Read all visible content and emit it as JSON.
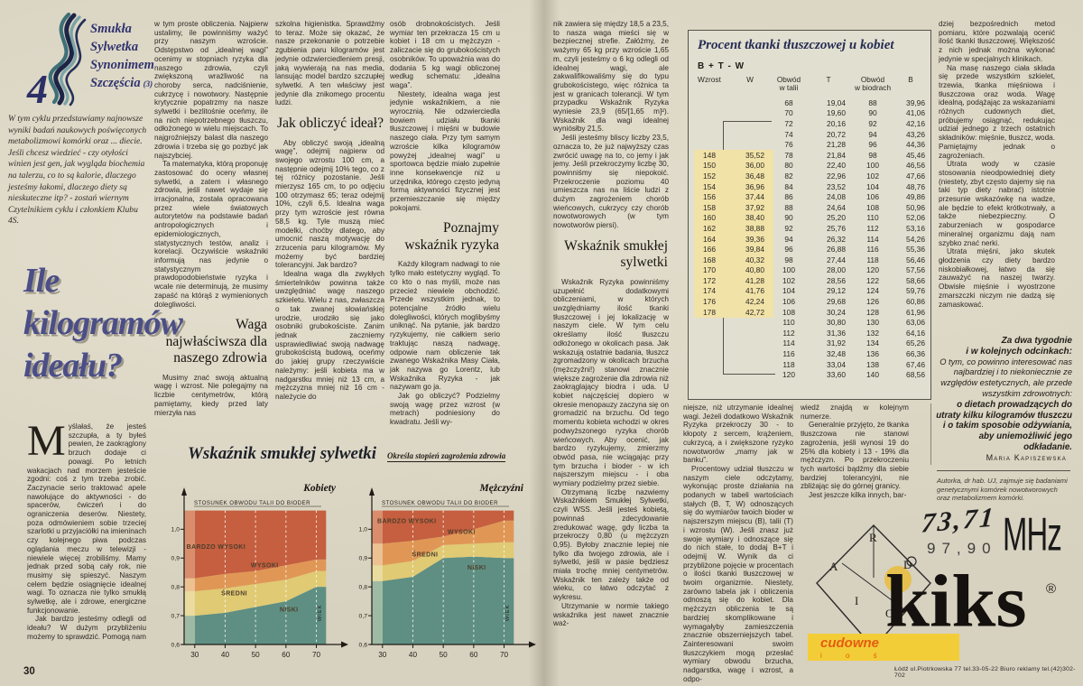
{
  "masthead": {
    "number": "4",
    "lines": [
      "Smukła",
      "Sylwetka",
      "Synonimem",
      "Szczęścia"
    ],
    "issue": "(3)"
  },
  "intro": "W tym cyklu przedstawiamy najnowsze wyniki badań naukowych poświęconych metabolizmowi komórki oraz ... diecie. Jeśli chcesz wiedzieć - czy otyłości winien jest gen, jak wygląda biochemia na talerzu, co to są kalorie, dlaczego jesteśmy łakomi, dlaczego diety są nieskuteczne itp? - zostań wiernym Czytelnikiem cyklu i członkiem Klubu 4S.",
  "headline": "Ile kilogramów ideału?",
  "page_number": "30",
  "columns": {
    "c1": {
      "dropcap": "M",
      "p1": "yślałaś, że jesteś szczupła, a ty byłeś pewien, że zaokrąglony brzuch dodaje ci powagi. Po letnich wakacjach nad morzem jesteście zgodni: coś z tym trzeba zrobić. Zaczynacie serio traktować apele nawołujące do aktywności - do spacerów, ćwiczeń i do ograniczenia deserów. Niestety, poza odmówieniem sobie trzeciej szarlotki u przyjaciółki na imieninach czy kolejnego piwa podczas oglądania meczu w telewizji - niewiele więcej zrobiliśmy. Mamy jednak przed sobą cały rok, nie musimy się spieszyć. Naszym celem będzie osiągnięcie idealnej wagi. To oznacza nie tylko smukłą sylwetkę, ale i zdrowe, energiczne funkcjonowanie.",
      "p2": "Jak bardzo jesteśmy odlegli od ideału? W dużym przybliżeniu możemy to sprawdzić. Pomogą nam"
    },
    "c2": {
      "p1": "w tym proste obliczenia. Najpierw ustalimy, ile powinniśmy ważyć przy naszym wzroście. Odstępstwo od „idealnej wagi” ocenimy w stopniach ryzyka dla naszego zdrowia, czyli zwiększoną wrażliwość na choroby serca, nadciśnienie, cukrzycę i nowotwory. Następnie krytycznie popatrzmy na nasze sylwetki i bezlitośnie oceńmy, ile na nich niepotrzebnego tłuszczu, odłożonego w wielu miejscach. To najgroźniejszy balast dla naszego zdrowia i trzeba się go pozbyć jak najszybciej.",
      "p2": "Ta matematyka, którą proponuję zastosować do oceny własnej sylwetki, a zatem i własnego zdrowia, jeśli nawet wydaje się irracjonalna, została opracowana przez wiele światowych autorytetów na podstawie badań antropologicznych i epidemiologicznych, statystycznych testów, analiz i korelacji. Oczywiście wskaźniki informują nas jedynie o statystycznym prawdopodobieństwie ryzyka i wcale nie determinują, że musimy zapaść na którąś z wymienionych dolegliwości.",
      "header": "Waga najwłaściwsza dla naszego zdrowia",
      "p3": "Musimy znać swoją aktualną wagę i wzrost. Nie polegajmy na liczbie centymetrów, którą pamiętamy, kiedy przed laty mierzyła nas"
    },
    "c3": {
      "p1": "szkolna higienistka. Sprawdźmy to teraz. Może się okazać, że nasze przekonanie o potrzebie zgubienia paru kilogramów jest jedynie odzwierciedleniem presji, jaką wywierają na nas media, lansując model bardzo szczupłej sylwetki. A ten właściwy jest jedynie dla znikomego procentu ludzi.",
      "header": "Jak obliczyć ideał?",
      "p2": "Aby obliczyć swoją „idealną wagę”, odejmij najpierw od swojego wzrostu 100 cm, a następnie odejmij 10% tego, co z tej różnicy pozostanie. Jeśli mierzysz 165 cm, to po odjęciu 100 otrzymasz 65; teraz odejmij 10%, czyli 6,5. Idealna waga przy tym wzroście jest równa 58,5 kg. Tyle muszą mieć modelki, choćby dlatego, aby umocnić naszą motywację do zrzucenia paru kilogramów. My możemy być bardziej tolerancyjni. Jak bardzo?",
      "p3": "Idealna waga dla zwykłych śmiertelników powinna także uwzględniać wagę naszego szkieletu. Wielu z nas, zwłaszcza o tak zwanej słowiańskiej urodzie, urodziło się jako osobniki grubokościste. Zanim jednak zaczniemy usprawiedliwiać swoją nadwagę grubokościstą budową, oceńmy do jakiej grupy rzeczywiście należymy: jeśli kobieta ma w nadgarstku mniej niż 13 cm, a mężczyzna mniej niż 16 cm - należycie do"
    },
    "c4": {
      "p1": "osób drobnokościstych. Jeśli wymiar ten przekracza 15 cm u kobiet i 18 cm u mężczyzn - zaliczacie się do grubokościstych osobników. To upoważnia was do dodania 5 kg wagi obliczonej według schematu: „idealna waga”.",
      "p2": "Niestety, idealna waga jest jedynie wskaźnikiem, a nie wyrocznią. Nie odzwierciedla bowiem udziału tkanki tłuszczowej i mięśni w budowie naszego ciała. Przy tym samym wzroście kilka kilogramów powyżej „idealnej wagi” u sportowca będzie miało zupełnie inne konsekwencje niż u urzędnika, którego często jedyną formą aktywności fizycznej jest przemieszczanie się między pokojami.",
      "header": "Poznajmy wskaźnik ryzyka",
      "p3": "Każdy kilogram nadwagi to nie tylko mało estetyczny wygląd. To co kto o nas myśli, może nas przecież niewiele obchodzić. Przede wszystkim jednak, to potencjalne źródło wielu dolegliwości, których moglibyśmy uniknąć. Na pytanie, jak bardzo ryzykujemy, nie całkiem serio traktując naszą nadwagę, odpowie nam obliczenie tak zwanego Wskaźnika Masy Ciała, jak nazywa go Lorentz, lub Wskaźnika Ryzyka - jak nazywam go ja.",
      "p4": "Jak go obliczyć? Podzielmy swoją wagę przez wzrost (w metrach) podniesiony do kwadratu. Jeśli wy-"
    },
    "c5": {
      "p1": "nik zawiera się między 18,5 a 23,5, to nasza waga mieści się w bezpiecznej strefie. Załóżmy, że ważymy 65 kg przy wzroście 1,65 m, czyli jesteśmy o 6 kg odlegli od idealnej wagi, ale zakwalifikowaliśmy się do typu grubokościstego, więc różnica ta jest w granicach tolerancji. W tym przypadku Wskaźnik Ryzyka wyniesie 23,9 (65/[1,65 m]²). Wskaźnik dla wagi idealnej wyniósłby 21,5.",
      "p2": "Jeśli jesteśmy bliscy liczby 23,5, oznacza to, że już najwyższy czas zwrócić uwagę na to, co jemy i jak jemy. Jeśli przekroczymy liczbę 30, powinniśmy się niepokoić. Przekroczenie poziomu 40 umieszcza nas na liście ludzi z dużym zagrożeniem chorób wieńcowych, cukrzycy czy chorób nowotworowych (w tym nowotworów piersi).",
      "header": "Wskaźnik smukłej sylwetki",
      "p3": "Wskaźnik Ryzyka powinniśmy uzupełnić dodatkowymi obliczeniami, w których uwzględniamy ilość tkanki tłuszczowej i jej lokalizację w naszym ciele. W tym celu określamy ilość tłuszczu odłożonego w okolicach pasa. Jak wskazują ostatnie badania, tłuszcz zgromadzony w okolicach brzucha (mężczyźni!) stanowi znacznie większe zagrożenie dla zdrowia niż zaokrąglający biodra i uda. U kobiet najczęściej dopiero w okresie menopauzy zaczyna się on gromadzić na brzuchu. Od tego momentu kobieta wchodzi w okres podwyższonego ryzyka chorób wieńcowych. Aby ocenić, jak bardzo ryzykujemy, zmierzmy obwód pasa, nie wciągając przy tym brzucha i bioder - w ich najszerszym miejscu - i oba wymiary podzielmy przez siebie.",
      "p4": "Otrzymaną liczbę nazwiemy Wskaźnikiem Smukłej Sylwetki, czyli WSS. Jeśli jesteś kobietą, powinnaś zdecydowanie zredukować wagę, gdy liczba ta przekroczy 0,80 (u mężczyzn 0,95). Byłoby znacznie lepiej nie tylko dla twojego zdrowia, ale i sylwetki, jeśli w pasie będziesz miała trochę mniej centymetrów. Wskaźnik ten zależy także od wieku, co łatwo odczytać z wykresu.",
      "p5": "Utrzymanie w normie takiego wskaźnika jest nawet znacznie waż-"
    },
    "c6": {
      "p1": "niejsze, niż utrzymanie idealnej wagi. Jeżeli dodatkowo Wskaźnik Ryzyka przekroczy 30 - to kłopoty z sercem, krążeniem, cukrzycą, a i zwiększone ryzyko nowotworów „mamy jak w banku”.",
      "p2": "Procentowy udział tłuszczu w naszym ciele odczytamy, wykonując proste działania na podanych w tabeli wartościach stałych (B, T, W) odnoszących się do wymiarów twoich bioder w najszerszym miejscu (B), talii (T) i wzrostu (W). Jeśli znasz już swoje wymiary i odnoszące się do nich stałe, to dodaj B+T i odejmij W. Wynik da ci przybliżone pojęcie w procentach o ilości tkanki tłuszczowej w twoim organizmie. Niestety, zarówno tabela jak i obliczenia odnoszą się do kobiet. Dla mężczyzn obliczenia te są bardziej skomplikowane i wymagałyby zamieszczenia znacznie obszerniejszych tabel. Zainteresowani swoim tłuszczykiem mogą przesłać wymiary obwodu brzucha, nadgarstka, wagę i wzrost, a odpo-"
    },
    "c7": {
      "p1": "wiedź znajdą w kolejnym numerze.",
      "p2": "Generalnie przyjęto, że tkanka tłuszczowa nie stanowi zagrożenia, jeśli wynosi 19 do 25% dla kobiety i 13 - 19% dla mężczyzn. Po przekroczeniu tych wartości bądźmy dla siebie bardziej tolerancyjni, nie zbliżając się do górnej granicy.",
      "p3": "Jest jeszcze kilka innych, bar-"
    },
    "c8": {
      "p1": "dziej bezpośrednich metod pomiaru, które pozwalają ocenić ilość tkanki tłuszczowej. Większość z nich jednak można wykonać jedynie w specjalnych klinikach.",
      "p2": "Na masę naszego ciała składa się przede wszystkim szkielet, trzewia, tkanka mięśniowa i tłuszczowa oraz woda. Wagę idealną, podążając za wskazaniami różnych cudownych diet, próbujemy osiągnąć, redukując udział jednego z trzech ostatnich składników: mięśnie, tłuszcz, woda. Pamiętajmy jednak o zagrożeniach.",
      "p3": "Utrata wody w czasie stosowania nieodpowiedniej diety (niestety, zbyt często dajemy się na taki typ diety nabrać) istotnie przesunie wskazówkę na wadze, ale będzie to efekt krótkotrwały, a także niebezpieczny. O zaburzeniach w gospodarce mineralnej organizmu dają nam szybko znać nerki.",
      "p4": "Utrata mięśni, jako skutek głodzenia czy diety bardzo niskobiałkowej, łatwo da się zauważyć na naszej twarzy. Obwisłe mięśnie i wyostrzone zmarszczki niczym nie dadzą się zamaskować."
    }
  },
  "teaser": {
    "head1": "Za dwa tygodnie",
    "head2": "i w kolejnych odcinkach:",
    "body": "O tym, co powinno interesować nas najbardziej i to niekoniecznie ze względów estetycznych, ale przede wszystkim zdrowotnych:",
    "emphasis": "o dietach prowadzących do utraty kilku kilogramów tłuszczu i o takim sposobie odżywiania, aby uniemożliwić jego odkładanie.",
    "author": "Maria Kapiszewska",
    "footnote": "Autorka, dr hab. UJ, zajmuje się badaniami genetycznymi komórek nowotworowych oraz metabolizmem komórki."
  },
  "chart_data": {
    "type": "area",
    "title": "Wskaźnik smukłej sylwetki",
    "subtitle": "Określa stopień zagrożenia zdrowia",
    "x_label": "WIEK",
    "y_axis_label": "STOSUNEK OBWODU TALII DO BIODER",
    "x_ticks": [
      30,
      40,
      50,
      60,
      70
    ],
    "y_ticks": [
      "1,0",
      "0,9",
      "0,8",
      "0,7",
      "0,6"
    ],
    "ylim": [
      0.6,
      1.07
    ],
    "grid": "dashed-vertical",
    "zones": [
      "NISKI",
      "ŚREDNI",
      "WYSOKI",
      "BARDZO WYSOKI"
    ],
    "colors": {
      "niski": "#5f8f82",
      "sredni": "#e0ca74",
      "wysoki": "#e09756",
      "bardzo_wysoki": "#c55f3f"
    },
    "panels": [
      {
        "label": "Kobiety",
        "x": [
          30,
          40,
          50,
          60,
          70
        ],
        "niski_top": [
          0.7,
          0.71,
          0.73,
          0.75,
          0.8
        ],
        "sredni_top": [
          0.785,
          0.795,
          0.81,
          0.825,
          0.855
        ],
        "wysoki_top": [
          0.83,
          0.845,
          0.855,
          0.875,
          0.895
        ]
      },
      {
        "label": "Mężczyźni",
        "x": [
          30,
          40,
          50,
          60,
          70
        ],
        "niski_top": [
          0.82,
          0.835,
          0.9,
          0.905,
          0.9
        ],
        "sredni_top": [
          0.875,
          0.89,
          0.945,
          0.95,
          0.955
        ],
        "wysoki_top": [
          0.95,
          0.96,
          0.975,
          1.0,
          1.03
        ]
      }
    ]
  },
  "fat_table": {
    "title": "Procent tkanki tłuszczowej u kobiet",
    "formula": "B + T - W",
    "headers": [
      "Wzrost",
      "W",
      "Obwód\nw talii",
      "T",
      "Obwód\nw biodrach",
      "B"
    ],
    "wzrost_offset": 5,
    "wzrost": [
      [
        "148",
        "35,52"
      ],
      [
        "150",
        "36,00"
      ],
      [
        "152",
        "36,48"
      ],
      [
        "154",
        "36,96"
      ],
      [
        "156",
        "37,44"
      ],
      [
        "158",
        "37,92"
      ],
      [
        "160",
        "38,40"
      ],
      [
        "162",
        "38,88"
      ],
      [
        "164",
        "39,36"
      ],
      [
        "166",
        "39,84"
      ],
      [
        "168",
        "40,32"
      ],
      [
        "170",
        "40,80"
      ],
      [
        "172",
        "41,28"
      ],
      [
        "174",
        "41,76"
      ],
      [
        "176",
        "42,24"
      ],
      [
        "178",
        "42,72"
      ]
    ],
    "talia": [
      [
        "68",
        "19,04"
      ],
      [
        "70",
        "19,60"
      ],
      [
        "72",
        "20,16"
      ],
      [
        "74",
        "20,72"
      ],
      [
        "76",
        "21,28"
      ],
      [
        "78",
        "21,84"
      ],
      [
        "80",
        "22,40"
      ],
      [
        "82",
        "22,96"
      ],
      [
        "84",
        "23,52"
      ],
      [
        "86",
        "24,08"
      ],
      [
        "88",
        "24,64"
      ],
      [
        "90",
        "25,20"
      ],
      [
        "92",
        "25,76"
      ],
      [
        "94",
        "26,32"
      ],
      [
        "96",
        "26,88"
      ],
      [
        "98",
        "27,44"
      ],
      [
        "100",
        "28,00"
      ],
      [
        "102",
        "28,56"
      ],
      [
        "104",
        "29,12"
      ],
      [
        "106",
        "29,68"
      ],
      [
        "108",
        "30,24"
      ],
      [
        "110",
        "30,80"
      ],
      [
        "112",
        "31,36"
      ],
      [
        "114",
        "31,92"
      ],
      [
        "116",
        "32,48"
      ],
      [
        "118",
        "33,04"
      ],
      [
        "120",
        "33,60"
      ]
    ],
    "biodra": [
      [
        "88",
        "39,96"
      ],
      [
        "90",
        "41,06"
      ],
      [
        "92",
        "42,16"
      ],
      [
        "94",
        "43,26"
      ],
      [
        "96",
        "44,36"
      ],
      [
        "98",
        "45,46"
      ],
      [
        "100",
        "46,56"
      ],
      [
        "102",
        "47,66"
      ],
      [
        "104",
        "48,76"
      ],
      [
        "106",
        "49,86"
      ],
      [
        "108",
        "50,96"
      ],
      [
        "110",
        "52,06"
      ],
      [
        "112",
        "53,16"
      ],
      [
        "114",
        "54,26"
      ],
      [
        "116",
        "55,36"
      ],
      [
        "118",
        "56,46"
      ],
      [
        "120",
        "57,56"
      ],
      [
        "122",
        "58,66"
      ],
      [
        "124",
        "59,76"
      ],
      [
        "126",
        "60,86"
      ],
      [
        "128",
        "61,96"
      ],
      [
        "130",
        "63,06"
      ],
      [
        "132",
        "64,16"
      ],
      [
        "134",
        "65,26"
      ],
      [
        "136",
        "66,36"
      ],
      [
        "138",
        "67,46"
      ],
      [
        "140",
        "68,56"
      ]
    ]
  },
  "ad": {
    "freq_top": "73,71",
    "freq_bottom": "97,90",
    "unit": "MHz",
    "letters": [
      "R",
      "A",
      "D",
      "I",
      "O"
    ],
    "brand": "kiks",
    "reg": "®",
    "slogan": "cudowne",
    "slogan2": "i o ś",
    "footer": "Łódź ul.Piotrkowska 77 tel.33-05-22  Biuro reklamy tel.(42)302-702"
  }
}
